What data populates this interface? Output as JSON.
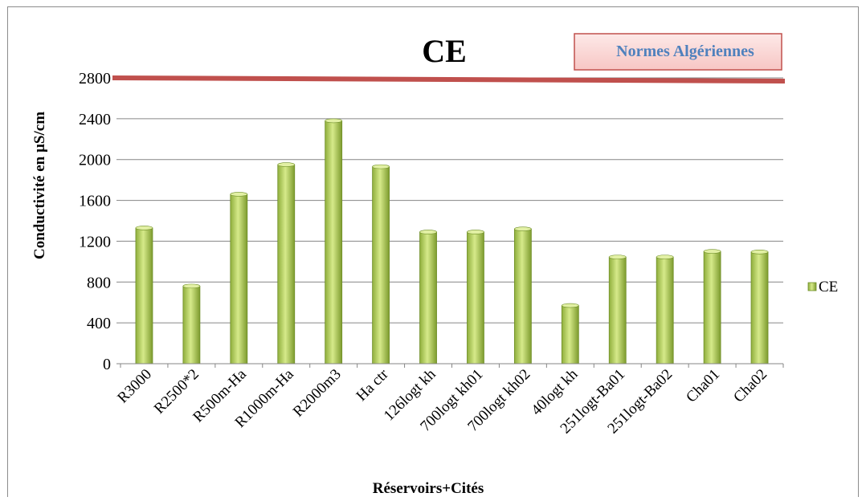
{
  "chart_data": {
    "type": "bar",
    "title": "CE",
    "xlabel": "Réservoirs+Cités",
    "ylabel": "Conductivité en µS/cm",
    "categories": [
      "R3000",
      "R2500*2",
      "R500m-Ha",
      "R1000m-Ha",
      "R2000m3",
      "Ha ctr",
      "126logt kh",
      "700logt kh01",
      "700logt kh02",
      "40logt kh",
      "251logt-Ba01",
      "251logt-Ba02",
      "Cha01",
      "Cha02"
    ],
    "series": [
      {
        "name": "CE",
        "values": [
          1330,
          760,
          1660,
          1950,
          2380,
          1930,
          1290,
          1290,
          1320,
          570,
          1045,
          1045,
          1100,
          1095
        ]
      }
    ],
    "yticks": [
      "0",
      "400",
      "800",
      "1200",
      "1600",
      "2000",
      "2400",
      "2800"
    ],
    "ylim": [
      0,
      2800
    ],
    "grid": true,
    "legend_position": "right",
    "reference_line": {
      "label": "Normes Algériennes",
      "value": 2800,
      "color": "#c0504d"
    },
    "colors": {
      "bar_light": "#c9e07a",
      "bar_mid": "#9bbb59",
      "bar_dark": "#5e7c1f",
      "grid": "#868686",
      "label_text": "#4f81bd"
    }
  }
}
